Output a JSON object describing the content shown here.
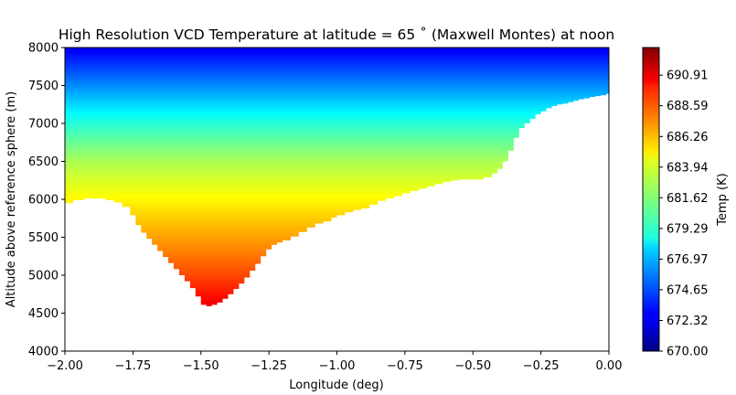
{
  "chart_data": {
    "type": "heatmap",
    "title": "High Resolution VCD Temperature at latitude = 65 ˚ (Maxwell Montes) at noon",
    "xlabel": "Longitude (deg)",
    "ylabel": "Altitude above reference sphere (m)",
    "xlim": [
      -2.0,
      0.0
    ],
    "ylim": [
      4000,
      8000
    ],
    "x_ticks": [
      -2.0,
      -1.75,
      -1.5,
      -1.25,
      -1.0,
      -0.75,
      -0.5,
      -0.25,
      0.0
    ],
    "x_tick_labels": [
      "−2.00",
      "−1.75",
      "−1.50",
      "−1.25",
      "−1.00",
      "−0.75",
      "−0.50",
      "−0.25",
      "0.00"
    ],
    "y_ticks": [
      4000,
      4500,
      5000,
      5500,
      6000,
      6500,
      7000,
      7500,
      8000
    ],
    "y_tick_labels": [
      "4000",
      "4500",
      "5000",
      "5500",
      "6000",
      "6500",
      "7000",
      "7500",
      "8000"
    ],
    "colormap": "jet",
    "grid": false,
    "colorbar": {
      "label": "Temp (K)",
      "range": [
        670.0,
        693.0
      ],
      "ticks": [
        670.0,
        672.32,
        674.65,
        676.97,
        679.29,
        681.62,
        683.94,
        686.26,
        688.59,
        690.91
      ],
      "tick_labels": [
        "670.00",
        "672.32",
        "674.65",
        "676.97",
        "679.29",
        "681.62",
        "683.94",
        "686.26",
        "688.59",
        "690.91"
      ]
    },
    "temperature_model": {
      "t_at_8000m": 672.5,
      "t_at_7500m": 676.0,
      "t_at_7000m": 679.5,
      "t_at_6500m": 682.5,
      "t_at_6000m": 684.5,
      "t_at_5500m": 686.5,
      "t_at_5000m": 688.5,
      "t_at_4600m": 690.5
    },
    "terrain_profile": {
      "longitude": [
        -2.0,
        -1.97,
        -1.93,
        -1.88,
        -1.85,
        -1.82,
        -1.79,
        -1.76,
        -1.74,
        -1.72,
        -1.7,
        -1.68,
        -1.66,
        -1.64,
        -1.62,
        -1.6,
        -1.58,
        -1.56,
        -1.54,
        -1.52,
        -1.5,
        -1.48,
        -1.46,
        -1.44,
        -1.42,
        -1.4,
        -1.38,
        -1.36,
        -1.34,
        -1.32,
        -1.3,
        -1.28,
        -1.26,
        -1.24,
        -1.22,
        -1.2,
        -1.17,
        -1.14,
        -1.11,
        -1.08,
        -1.05,
        -1.02,
        -1.0,
        -0.97,
        -0.94,
        -0.91,
        -0.88,
        -0.85,
        -0.82,
        -0.79,
        -0.76,
        -0.73,
        -0.7,
        -0.67,
        -0.64,
        -0.61,
        -0.58,
        -0.55,
        -0.52,
        -0.49,
        -0.46,
        -0.43,
        -0.41,
        -0.39,
        -0.37,
        -0.35,
        -0.33,
        -0.31,
        -0.29,
        -0.27,
        -0.25,
        -0.23,
        -0.21,
        -0.19,
        -0.17,
        -0.15,
        -0.13,
        -0.11,
        -0.09,
        -0.07,
        -0.05,
        -0.03,
        -0.01,
        0.0
      ],
      "altitude": [
        5950,
        5990,
        6010,
        6010,
        5990,
        5960,
        5900,
        5790,
        5660,
        5560,
        5480,
        5400,
        5320,
        5240,
        5160,
        5080,
        5000,
        4920,
        4830,
        4720,
        4610,
        4590,
        4610,
        4640,
        4690,
        4750,
        4820,
        4890,
        4970,
        5060,
        5150,
        5250,
        5340,
        5400,
        5430,
        5460,
        5510,
        5570,
        5630,
        5680,
        5710,
        5760,
        5790,
        5830,
        5860,
        5880,
        5930,
        5980,
        6010,
        6040,
        6080,
        6110,
        6140,
        6170,
        6200,
        6230,
        6250,
        6260,
        6260,
        6260,
        6290,
        6340,
        6400,
        6500,
        6640,
        6810,
        6940,
        7000,
        7060,
        7120,
        7160,
        7200,
        7230,
        7250,
        7260,
        7280,
        7300,
        7320,
        7330,
        7350,
        7360,
        7370,
        7390,
        7400
      ]
    }
  }
}
